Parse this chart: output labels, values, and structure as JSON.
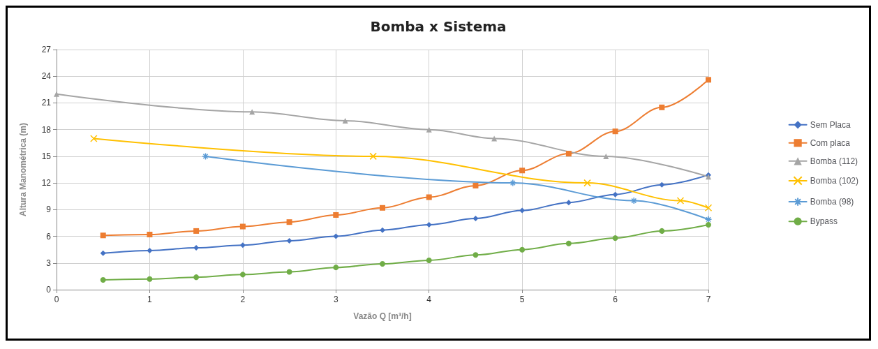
{
  "chart_data": {
    "type": "line",
    "title": "Bomba x Sistema",
    "xlabel": "Vazão Q [m³/h]",
    "ylabel": "Altura Manométrica (m)",
    "xlim": [
      0,
      7
    ],
    "xticks": [
      0,
      1,
      2,
      3,
      4,
      5,
      6,
      7
    ],
    "ylim": [
      0,
      27
    ],
    "yticks": [
      0,
      3,
      6,
      9,
      12,
      15,
      18,
      21,
      24,
      27
    ],
    "grid": true,
    "legend": "right",
    "line_style": "solid",
    "series": [
      {
        "name": "Sem Placa",
        "color": "#4472c4",
        "marker": "diamond",
        "x": [
          0.5,
          1,
          1.5,
          2,
          2.5,
          3,
          3.5,
          4,
          4.5,
          5,
          5.5,
          6,
          6.5,
          7
        ],
        "values": [
          4.1,
          4.4,
          4.7,
          5.0,
          5.5,
          6.0,
          6.7,
          7.3,
          8.0,
          8.9,
          9.8,
          10.7,
          11.8,
          12.9
        ]
      },
      {
        "name": "Com placa",
        "color": "#ed7d31",
        "marker": "square",
        "x": [
          0.5,
          1,
          1.5,
          2,
          2.5,
          3,
          3.5,
          4,
          4.5,
          5,
          5.5,
          6,
          6.5,
          7
        ],
        "values": [
          6.1,
          6.2,
          6.6,
          7.1,
          7.6,
          8.4,
          9.2,
          10.4,
          11.7,
          13.4,
          15.3,
          17.8,
          20.5,
          23.6
        ]
      },
      {
        "name": "Bomba (112)",
        "color": "#a5a5a5",
        "marker": "triangle",
        "x": [
          0,
          2.1,
          3.1,
          4,
          4.7,
          5.9,
          7
        ],
        "values": [
          22,
          20,
          19,
          18,
          17,
          15,
          12.7
        ]
      },
      {
        "name": "Bomba (102)",
        "color": "#ffc000",
        "marker": "cross",
        "x": [
          0.4,
          3.4,
          5.7,
          6.7,
          7
        ],
        "values": [
          17,
          15,
          12,
          10,
          9.2
        ]
      },
      {
        "name": "Bomba (98)",
        "color": "#5b9bd5",
        "marker": "star",
        "x": [
          1.6,
          4.9,
          6.2,
          7
        ],
        "values": [
          15,
          12,
          10,
          7.9
        ]
      },
      {
        "name": "Bypass",
        "color": "#70ad47",
        "marker": "circle",
        "x": [
          0.5,
          1,
          1.5,
          2,
          2.5,
          3,
          3.5,
          4,
          4.5,
          5,
          5.5,
          6,
          6.5,
          7
        ],
        "values": [
          1.1,
          1.2,
          1.4,
          1.7,
          2.0,
          2.5,
          2.9,
          3.3,
          3.9,
          4.5,
          5.2,
          5.8,
          6.6,
          7.3
        ]
      }
    ]
  }
}
